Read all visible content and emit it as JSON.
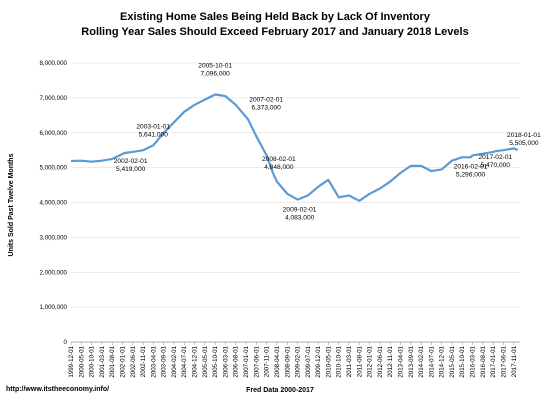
{
  "chart_data": {
    "type": "line",
    "title": "Existing Home Sales Being Held Back by Lack Of Inventory",
    "subtitle": "Rolling Year Sales Should Exceed February 2017 and January 2018 Levels",
    "xlabel": "Fred Data 2000-2017",
    "ylabel": "Units Sold Past Twelve Months",
    "ylim": [
      0,
      8000000
    ],
    "yticks": [
      "0",
      "1,000,000",
      "2,000,000",
      "3,000,000",
      "4,000,000",
      "5,000,000",
      "6,000,000",
      "7,000,000",
      "8,000,000"
    ],
    "xticks": [
      "1999-12-01",
      "2000-05-01",
      "2000-10-01",
      "2001-03-01",
      "2001-08-01",
      "2002-01-01",
      "2002-06-01",
      "2002-11-01",
      "2003-04-01",
      "2003-09-01",
      "2004-02-01",
      "2004-07-01",
      "2004-12-01",
      "2005-05-01",
      "2005-10-01",
      "2006-03-01",
      "2006-08-01",
      "2007-01-01",
      "2007-06-01",
      "2007-11-01",
      "2008-04-01",
      "2008-09-01",
      "2009-02-01",
      "2009-07-01",
      "2009-12-01",
      "2010-05-01",
      "2010-10-01",
      "2011-03-01",
      "2011-08-01",
      "2012-01-01",
      "2012-06-01",
      "2012-11-01",
      "2013-04-01",
      "2013-09-01",
      "2014-02-01",
      "2014-07-01",
      "2014-12-01",
      "2015-05-01",
      "2015-10-01",
      "2016-03-01",
      "2016-08-01",
      "2017-01-01",
      "2017-06-01",
      "2017-11-01"
    ],
    "grid": "horizontal",
    "color": "#5b9bd5",
    "series": [
      {
        "x": [
          "1999-12-01",
          "2000-05-01",
          "2000-10-01",
          "2001-03-01",
          "2001-08-01",
          "2002-02-01",
          "2002-06-01",
          "2002-11-01",
          "2003-04-01",
          "2003-09-01",
          "2004-02-01",
          "2004-07-01",
          "2004-12-01",
          "2005-05-01",
          "2005-10-01",
          "2006-03-01",
          "2006-08-01",
          "2007-01-01",
          "2007-02-01",
          "2007-06-01",
          "2007-11-01",
          "2008-02-01",
          "2008-04-01",
          "2008-09-01",
          "2009-02-01",
          "2009-07-01",
          "2009-12-01",
          "2010-05-01",
          "2010-10-01",
          "2011-03-01",
          "2011-08-01",
          "2012-01-01",
          "2012-06-01",
          "2012-11-01",
          "2013-04-01",
          "2013-09-01",
          "2014-02-01",
          "2014-07-01",
          "2014-12-01",
          "2015-05-01",
          "2015-10-01",
          "2016-02-01",
          "2016-03-01",
          "2016-08-01",
          "2017-01-01",
          "2017-02-01",
          "2017-06-01",
          "2017-11-01",
          "2018-01-01"
        ],
        "values": [
          5190000,
          5200000,
          5170000,
          5200000,
          5250000,
          5419000,
          5450000,
          5500000,
          5641000,
          6000000,
          6300000,
          6600000,
          6800000,
          6950000,
          7096000,
          7050000,
          6800000,
          6450000,
          6373000,
          5900000,
          5350000,
          4848000,
          4600000,
          4250000,
          4083000,
          4200000,
          4450000,
          4650000,
          4150000,
          4200000,
          4050000,
          4250000,
          4400000,
          4600000,
          4850000,
          5050000,
          5050000,
          4900000,
          4950000,
          5200000,
          5300000,
          5296000,
          5350000,
          5400000,
          5450000,
          5470000,
          5500000,
          5550000,
          5505000
        ]
      }
    ],
    "annotations": [
      {
        "date": "2002-02-01",
        "value": "5,419,000"
      },
      {
        "date": "2003-01-01",
        "value": "5,641,000"
      },
      {
        "date": "2005-10-01",
        "value": "7,096,000"
      },
      {
        "date": "2007-02-01",
        "value": "6,373,000"
      },
      {
        "date": "2008-02-01",
        "value": "4,848,000"
      },
      {
        "date": "2009-02-01",
        "value": "4,083,000"
      },
      {
        "date": "2016-02-01",
        "value": "5,296,000"
      },
      {
        "date": "2017-02-01",
        "value": "5,470,000"
      },
      {
        "date": "2018-01-01",
        "value": "5,505,000"
      }
    ]
  },
  "source": "http://www.itstheeconomy.info/"
}
